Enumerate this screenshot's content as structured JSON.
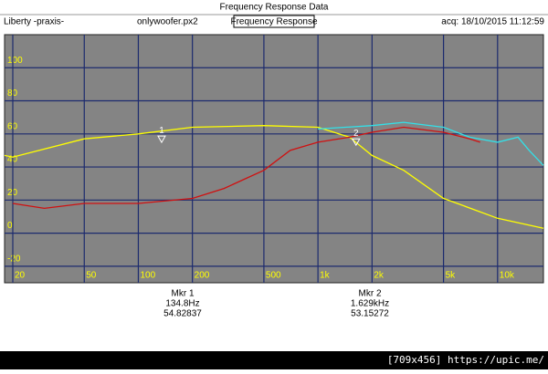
{
  "window": {
    "title": "Frequency Response Data",
    "left": "Liberty -praxis-",
    "file": "onlywoofer.px2",
    "view": "Frequency Response",
    "acq": "acq: 18/10/2015 11:12:59",
    "footer": "[709x456] https://upic.me/",
    "readouts": [
      [
        "Mkr 1",
        "134.8Hz",
        "54.82837"
      ],
      [
        "Mkr 2",
        "1.629kHz",
        "53.15272"
      ]
    ]
  },
  "chart_data": {
    "type": "line",
    "log_x": true,
    "grid": true,
    "xlim": [
      18,
      18000
    ],
    "ylim": [
      -30,
      120
    ],
    "xticks": [
      20,
      50,
      100,
      200,
      500,
      {
        "value": 1000,
        "label": "1k"
      },
      {
        "value": 2000,
        "label": "2k"
      },
      {
        "value": 5000,
        "label": "5k"
      },
      {
        "value": 10000,
        "label": "10k"
      }
    ],
    "yticks": [
      -20,
      0,
      20,
      40,
      60,
      80,
      100
    ],
    "series": [
      {
        "color": "#ffff00",
        "x": [
          18,
          20,
          50,
          100,
          200,
          500,
          1000,
          1500,
          2000,
          3000,
          5000,
          10000,
          18000
        ],
        "values": [
          47,
          46,
          57,
          60,
          64,
          65,
          64,
          58,
          47,
          38,
          21,
          9,
          3
        ]
      },
      {
        "color": "#33e0e8",
        "x": [
          1000,
          2000,
          3000,
          5000,
          7000,
          10000,
          13000,
          15000,
          18000
        ],
        "values": [
          63,
          65,
          67,
          64,
          58,
          55,
          58,
          50,
          41
        ]
      },
      {
        "color": "#d01010",
        "x": [
          20,
          30,
          50,
          100,
          200,
          300,
          500,
          700,
          1000,
          1500,
          2000,
          3000,
          5000,
          7000,
          8000
        ],
        "values": [
          18,
          15,
          18,
          18,
          21,
          27,
          38,
          50,
          55,
          58,
          61,
          64,
          61,
          57,
          55
        ]
      }
    ],
    "markers": [
      {
        "label": "1",
        "x": 134.8,
        "y": 54.82837
      },
      {
        "label": "2",
        "x": 1629,
        "y": 53.15272
      }
    ]
  }
}
